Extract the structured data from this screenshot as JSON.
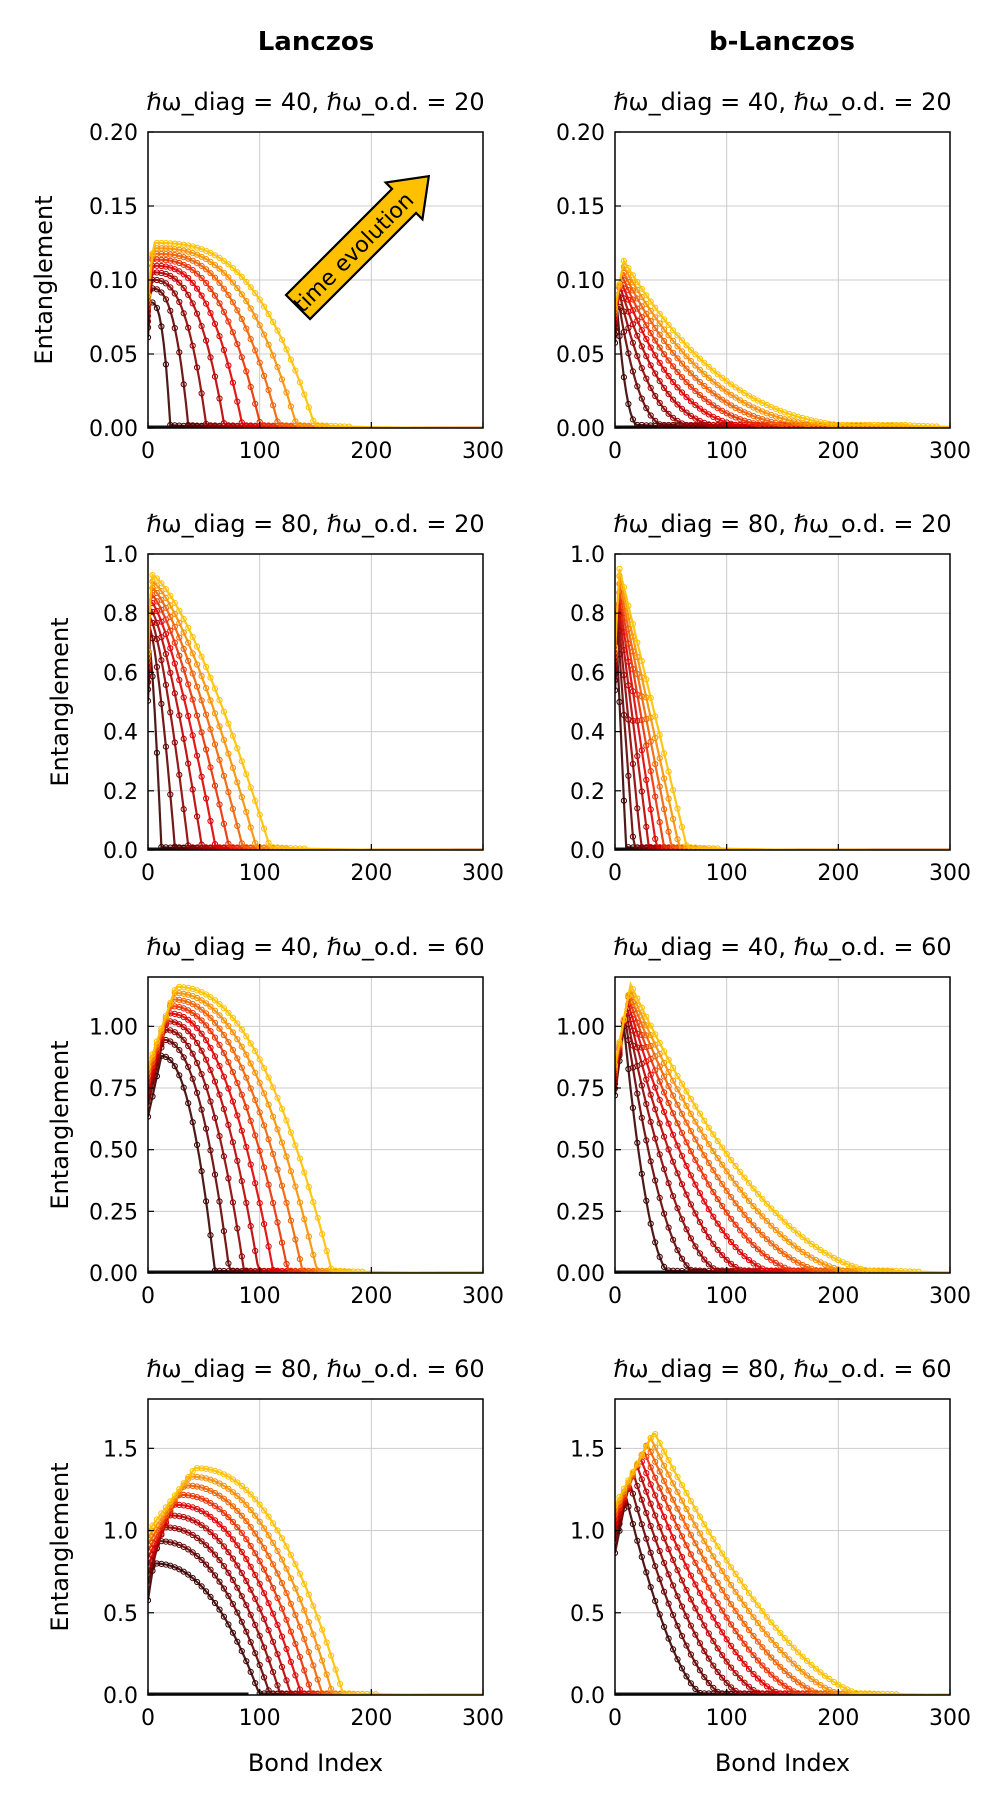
{
  "columns": {
    "left": "Lanczos",
    "right": "b-Lanczos"
  },
  "xlabel": "Bond Index",
  "ylabel": "Entanglement",
  "annotation": "time evolution",
  "colors": {
    "early": "#3a0000",
    "mid": "#e00000",
    "late": "#ffc000",
    "arrow_fill": "#ffc000",
    "grid": "#cccccc",
    "baseline": "#111111"
  },
  "chart_data": [
    {
      "type": "line",
      "method": "Lanczos",
      "row": 1,
      "title": "ℏω_diag = 40, ℏω_o.d. = 20",
      "xlim": [
        0,
        300
      ],
      "ylim": [
        0,
        0.2
      ],
      "xticks": [
        "0",
        "100",
        "200",
        "300"
      ],
      "yticks": [
        "0.00",
        "0.05",
        "0.10",
        "0.15",
        "0.20"
      ],
      "ytick_values": [
        0,
        0.05,
        0.1,
        0.15,
        0.2
      ],
      "n_curves": 9,
      "peak_first": 0.085,
      "peak_last": 0.125,
      "peak_x_first": 2,
      "peak_x_last": 5,
      "front_first": 20,
      "front_last": 150,
      "shoulder": 0.45,
      "tail": 0.002
    },
    {
      "type": "line",
      "method": "b-Lanczos",
      "row": 1,
      "title": "ℏω_diag = 40, ℏω_o.d. = 20",
      "xlim": [
        0,
        300
      ],
      "ylim": [
        0,
        0.2
      ],
      "xticks": [
        "0",
        "100",
        "200",
        "300"
      ],
      "yticks": [
        "0.00",
        "0.05",
        "0.10",
        "0.15",
        "0.20"
      ],
      "ytick_values": [
        0,
        0.05,
        0.1,
        0.15,
        0.2
      ],
      "n_curves": 9,
      "peak_first": 0.08,
      "peak_last": 0.113,
      "peak_x_first": 2,
      "peak_x_last": 8,
      "front_first": 25,
      "front_last": 260,
      "shoulder": -0.6,
      "tail": 0.002
    },
    {
      "type": "line",
      "method": "Lanczos",
      "row": 2,
      "title": "ℏω_diag = 80, ℏω_o.d. = 20",
      "xlim": [
        0,
        300
      ],
      "ylim": [
        0,
        1.0
      ],
      "xticks": [
        "0",
        "100",
        "200",
        "300"
      ],
      "yticks": [
        "0.0",
        "0.2",
        "0.4",
        "0.6",
        "0.8",
        "1.0"
      ],
      "ytick_values": [
        0,
        0.2,
        0.4,
        0.6,
        0.8,
        1.0
      ],
      "n_curves": 9,
      "peak_first": 0.7,
      "peak_last": 0.93,
      "peak_x_first": 1,
      "peak_x_last": 3,
      "front_first": 12,
      "front_last": 110,
      "shoulder": 0.1,
      "tail": 0.01
    },
    {
      "type": "line",
      "method": "b-Lanczos",
      "row": 2,
      "title": "ℏω_diag = 80, ℏω_o.d. = 20",
      "xlim": [
        0,
        300
      ],
      "ylim": [
        0,
        1.0
      ],
      "xticks": [
        "0",
        "100",
        "200",
        "300"
      ],
      "yticks": [
        "0.0",
        "0.2",
        "0.4",
        "0.6",
        "0.8",
        "1.0"
      ],
      "ytick_values": [
        0,
        0.2,
        0.4,
        0.6,
        0.8,
        1.0
      ],
      "n_curves": 9,
      "peak_first": 0.75,
      "peak_last": 0.95,
      "peak_x_first": 1,
      "peak_x_last": 4,
      "front_first": 10,
      "front_last": 65,
      "shoulder": 0.0,
      "tail": 0.01
    },
    {
      "type": "line",
      "method": "Lanczos",
      "row": 3,
      "title": "ℏω_diag = 40, ℏω_o.d. = 60",
      "xlim": [
        0,
        300
      ],
      "ylim": [
        0,
        1.2
      ],
      "xticks": [
        "0",
        "100",
        "200",
        "300"
      ],
      "yticks": [
        "0.00",
        "0.25",
        "0.50",
        "0.75",
        "1.00"
      ],
      "ytick_values": [
        0,
        0.25,
        0.5,
        0.75,
        1.0
      ],
      "n_curves": 9,
      "peak_first": 0.88,
      "peak_last": 1.16,
      "peak_x_first": 12,
      "peak_x_last": 25,
      "front_first": 60,
      "front_last": 165,
      "shoulder": 0.3,
      "tail": 0.01
    },
    {
      "type": "line",
      "method": "b-Lanczos",
      "row": 3,
      "title": "ℏω_diag = 40, ℏω_o.d. = 60",
      "xlim": [
        0,
        300
      ],
      "ylim": [
        0,
        1.2
      ],
      "xticks": [
        "0",
        "100",
        "200",
        "300"
      ],
      "yticks": [
        "0.00",
        "0.25",
        "0.50",
        "0.75",
        "1.00"
      ],
      "ytick_values": [
        0,
        0.25,
        0.5,
        0.75,
        1.0
      ],
      "n_curves": 9,
      "peak_first": 1.0,
      "peak_last": 1.17,
      "peak_x_first": 8,
      "peak_x_last": 14,
      "front_first": 50,
      "front_last": 245,
      "shoulder": -0.3,
      "tail": 0.01
    },
    {
      "type": "line",
      "method": "Lanczos",
      "row": 4,
      "title": "ℏω_diag = 80, ℏω_o.d. = 60",
      "xlim": [
        0,
        300
      ],
      "ylim": [
        0,
        1.8
      ],
      "xticks": [
        "0",
        "100",
        "200",
        "300"
      ],
      "yticks": [
        "0.0",
        "0.5",
        "1.0",
        "1.5"
      ],
      "ytick_values": [
        0,
        0.5,
        1.0,
        1.5
      ],
      "n_curves": 9,
      "peak_first": 0.8,
      "peak_last": 1.38,
      "peak_x_first": 5,
      "peak_x_last": 42,
      "front_first": 100,
      "front_last": 175,
      "shoulder": 0.3,
      "tail": 0.01
    },
    {
      "type": "line",
      "method": "b-Lanczos",
      "row": 4,
      "title": "ℏω_diag = 80, ℏω_o.d. = 60",
      "xlim": [
        0,
        300
      ],
      "ylim": [
        0,
        1.8
      ],
      "xticks": [
        "0",
        "100",
        "200",
        "300"
      ],
      "yticks": [
        "0.0",
        "0.5",
        "1.0",
        "1.5"
      ],
      "ytick_values": [
        0,
        0.5,
        1.0,
        1.5
      ],
      "n_curves": 9,
      "peak_first": 1.2,
      "peak_last": 1.6,
      "peak_x_first": 10,
      "peak_x_last": 35,
      "front_first": 80,
      "front_last": 225,
      "shoulder": -0.2,
      "tail": 0.01
    }
  ]
}
